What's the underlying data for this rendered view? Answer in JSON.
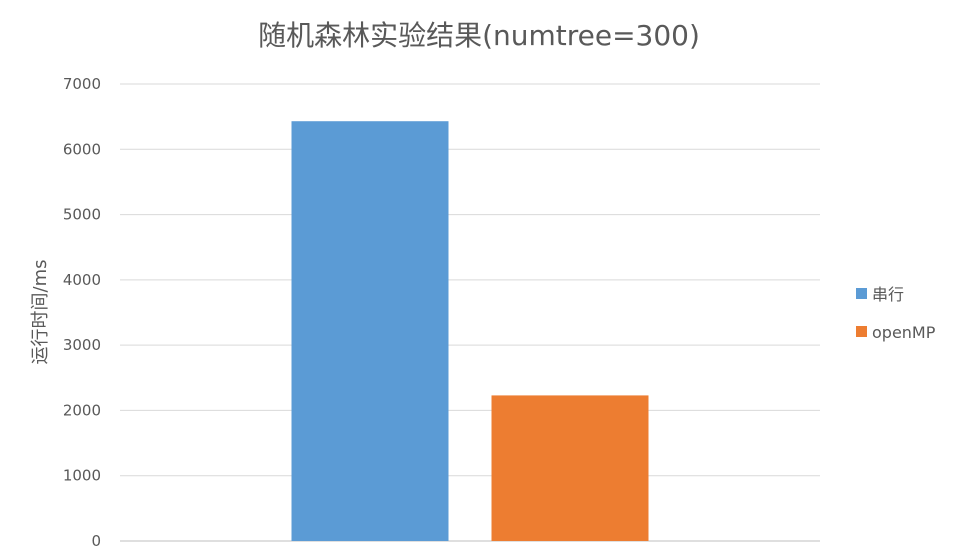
{
  "chart_data": {
    "type": "bar",
    "title": "随机森林实验结果(numtree=300)",
    "xlabel": "",
    "ylabel": "运行时间/ms",
    "ylim": [
      0,
      7000
    ],
    "yticks": [
      0,
      1000,
      2000,
      3000,
      4000,
      5000,
      6000,
      7000
    ],
    "grid": true,
    "legend_position": "right",
    "categories": [
      ""
    ],
    "series": [
      {
        "name": "串行",
        "values": [
          6430
        ],
        "color": "#5b9bd5"
      },
      {
        "name": "openMP",
        "values": [
          2230
        ],
        "color": "#ed7d31"
      }
    ]
  }
}
